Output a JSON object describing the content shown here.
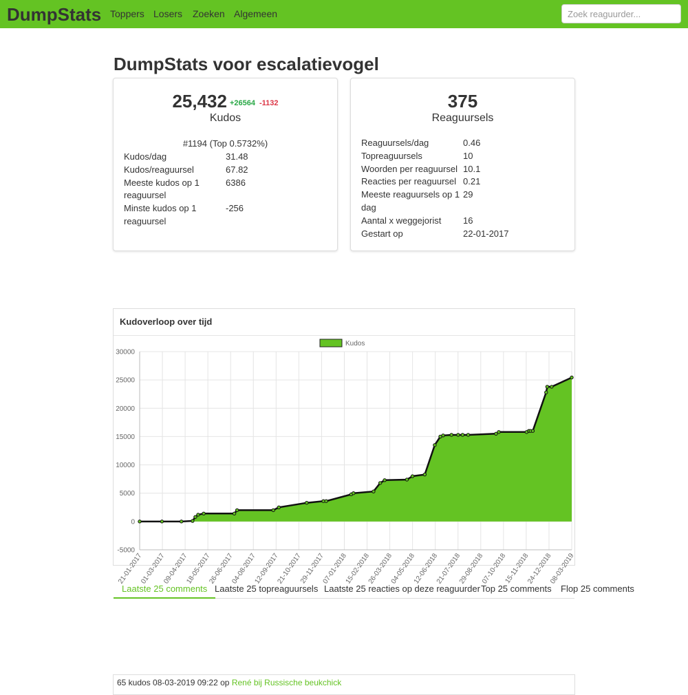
{
  "nav": {
    "brand": "DumpStats",
    "links": [
      "Toppers",
      "Losers",
      "Zoeken",
      "Algemeen"
    ],
    "search_placeholder": "Zoek reaguurder..."
  },
  "page": {
    "title": "DumpStats voor escalatievogel"
  },
  "kudos_card": {
    "value": "25,432",
    "plus": "+26564",
    "minus": "-1132",
    "label": "Kudos",
    "rank": "#1194 (Top 0.5732%)",
    "stats": [
      {
        "k": "Kudos/dag",
        "v": "31.48"
      },
      {
        "k": "Kudos/reaguursel",
        "v": "67.82"
      },
      {
        "k": "Meeste kudos op 1 reaguursel",
        "v": "6386"
      },
      {
        "k": "Minste kudos op 1 reaguursel",
        "v": "-256"
      }
    ]
  },
  "reaguursels_card": {
    "value": "375",
    "label": "Reaguursels",
    "stats": [
      {
        "k": "Reaguursels/dag",
        "v": "0.46"
      },
      {
        "k": "Topreaguursels",
        "v": "10"
      },
      {
        "k": "Woorden per reaguursel",
        "v": "10.1"
      },
      {
        "k": "Reacties per reaguursel",
        "v": "0.21"
      },
      {
        "k": "Meeste reaguursels op 1 dag",
        "v": "29"
      },
      {
        "k": "Aantal x weggejorist",
        "v": "16"
      },
      {
        "k": "Gestart op",
        "v": "22-01-2017"
      }
    ]
  },
  "chart_card": {
    "title": "Kudoverloop over tijd"
  },
  "chart_data": {
    "type": "area",
    "title": "Kudoverloop over tijd",
    "legend": "top-center",
    "grid": true,
    "fill_color": "#64c323",
    "line_color": "#111111",
    "ylim": [
      -5000,
      30000
    ],
    "yticks": [
      30000,
      25000,
      20000,
      15000,
      10000,
      5000,
      0,
      -5000
    ],
    "x_tick_labels": [
      "21-01-2017",
      "01-03-2017",
      "09-04-2017",
      "18-05-2017",
      "26-06-2017",
      "04-08-2017",
      "12-09-2017",
      "21-10-2017",
      "29-11-2017",
      "07-01-2018",
      "15-02-2018",
      "26-03-2018",
      "04-05-2018",
      "12-06-2018",
      "21-07-2018",
      "29-08-2018",
      "07-10-2018",
      "15-11-2018",
      "24-12-2018",
      "08-03-2019"
    ],
    "series": [
      {
        "name": "Kudos",
        "x": [
          0,
          40,
          75,
          95,
          100,
          105,
          115,
          170,
          175,
          240,
          250,
          300,
          330,
          335,
          380,
          384,
          420,
          432,
          440,
          480,
          490,
          512,
          530,
          540,
          545,
          560,
          572,
          580,
          590,
          640,
          645,
          695,
          699,
          702,
          706,
          730,
          732,
          740,
          776
        ],
        "y": [
          0,
          0,
          0,
          100,
          800,
          1200,
          1400,
          1400,
          2000,
          2000,
          2500,
          3300,
          3600,
          3600,
          4800,
          5000,
          5300,
          6800,
          7300,
          7400,
          8000,
          8300,
          13500,
          15000,
          15200,
          15300,
          15300,
          15300,
          15300,
          15500,
          15800,
          15800,
          16000,
          16000,
          16000,
          22800,
          23800,
          23800,
          25432
        ]
      }
    ]
  },
  "tabs": [
    "Laatste 25 comments",
    "Laatste 25 topreaguursels",
    "Laatste 25 reacties op deze reaguurder",
    "Top 25 comments",
    "Flop 25 comments"
  ],
  "comment": {
    "meta": "65 kudos 08-03-2019 09:22 op ",
    "link": "René bij Russische beukchick"
  }
}
